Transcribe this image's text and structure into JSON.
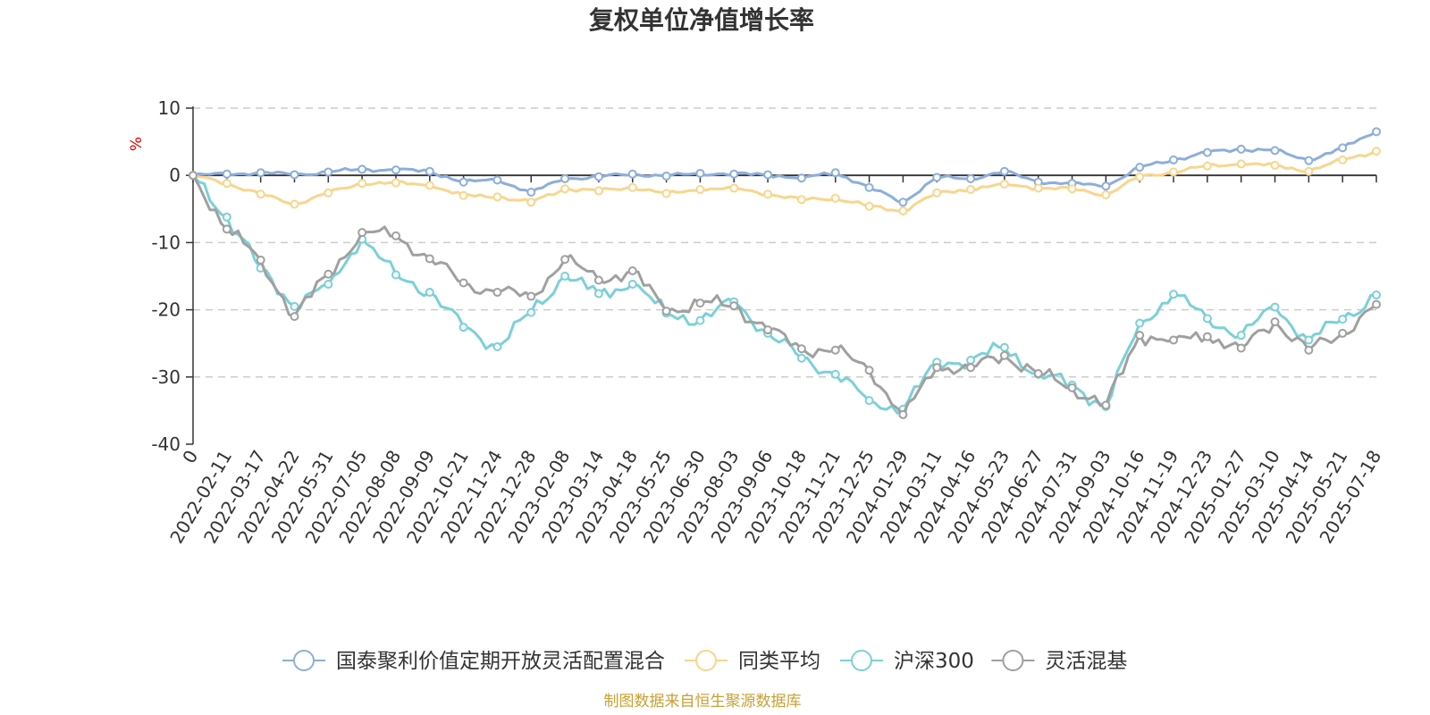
{
  "chart_data": {
    "type": "line",
    "title": "复权单位净值增长率",
    "ylabel": "%",
    "xlabel": "",
    "ylim": [
      -40,
      10
    ],
    "yticks": [
      10,
      0,
      -10,
      -20,
      -30,
      -40
    ],
    "grid": true,
    "legend_position": "bottom",
    "source": "制图数据来自恒生聚源数据库",
    "categories": [
      "0",
      "2022-02-11",
      "2022-03-17",
      "2022-04-22",
      "2022-05-31",
      "2022-07-05",
      "2022-08-08",
      "2022-09-09",
      "2022-10-21",
      "2022-11-24",
      "2022-12-28",
      "2023-02-08",
      "2023-03-14",
      "2023-04-18",
      "2023-05-25",
      "2023-06-30",
      "2023-08-03",
      "2023-09-06",
      "2023-10-18",
      "2023-11-21",
      "2023-12-25",
      "2024-01-29",
      "2024-03-11",
      "2024-04-16",
      "2024-05-23",
      "2024-06-27",
      "2024-07-31",
      "2024-09-03",
      "2024-10-16",
      "2024-11-19",
      "2024-12-23",
      "2025-01-27",
      "2025-03-10",
      "2025-04-14",
      "2025-05-21",
      "2025-07-18"
    ],
    "series": [
      {
        "name": "国泰聚利价值定期开放灵活配置混合",
        "color": "#8caedb",
        "values": [
          0,
          0.2,
          0.4,
          0.1,
          0.5,
          0.9,
          0.8,
          0.6,
          -1.0,
          -0.7,
          -2.5,
          -0.5,
          -0.2,
          0.2,
          -0.1,
          0.3,
          0.2,
          0.1,
          -0.4,
          0.4,
          -1.8,
          -4.0,
          -0.3,
          -0.5,
          0.6,
          -1.0,
          -1.2,
          -1.6,
          1.2,
          2.3,
          3.4,
          3.9,
          3.7,
          2.2,
          4.1,
          6.5
        ]
      },
      {
        "name": "同类平均",
        "color": "#f9d58c",
        "values": [
          0,
          -1.2,
          -2.8,
          -4.3,
          -2.6,
          -1.2,
          -1.1,
          -1.5,
          -3.0,
          -3.2,
          -4.0,
          -2.0,
          -2.3,
          -1.8,
          -2.7,
          -2.1,
          -1.9,
          -2.8,
          -3.6,
          -3.4,
          -4.6,
          -5.3,
          -2.6,
          -2.1,
          -1.3,
          -1.9,
          -2.0,
          -2.9,
          -0.2,
          0.5,
          1.4,
          1.7,
          1.5,
          0.6,
          2.3,
          3.6
        ]
      },
      {
        "name": "沪深300",
        "color": "#7bd0d8",
        "values": [
          0,
          -6.2,
          -13.8,
          -19.5,
          -16.2,
          -9.5,
          -14.8,
          -17.4,
          -22.6,
          -25.5,
          -20.4,
          -15.0,
          -17.6,
          -16.2,
          -20.5,
          -21.6,
          -18.8,
          -23.5,
          -27.2,
          -29.6,
          -33.5,
          -34.8,
          -27.8,
          -27.5,
          -25.6,
          -29.6,
          -31.2,
          -34.4,
          -22.0,
          -17.7,
          -21.3,
          -23.8,
          -19.6,
          -24.5,
          -21.4,
          -17.8
        ]
      },
      {
        "name": "灵活混基",
        "color": "#a0a0a0",
        "values": [
          0,
          -8.0,
          -12.6,
          -21.0,
          -14.7,
          -8.5,
          -9.0,
          -12.4,
          -16.0,
          -17.4,
          -18.0,
          -12.5,
          -15.6,
          -14.2,
          -20.2,
          -19.0,
          -19.4,
          -23.0,
          -25.8,
          -26.0,
          -29.0,
          -35.6,
          -28.6,
          -28.6,
          -26.8,
          -29.5,
          -31.6,
          -34.2,
          -23.8,
          -24.5,
          -24.0,
          -25.7,
          -21.8,
          -26.0,
          -23.5,
          -19.2
        ]
      }
    ]
  }
}
